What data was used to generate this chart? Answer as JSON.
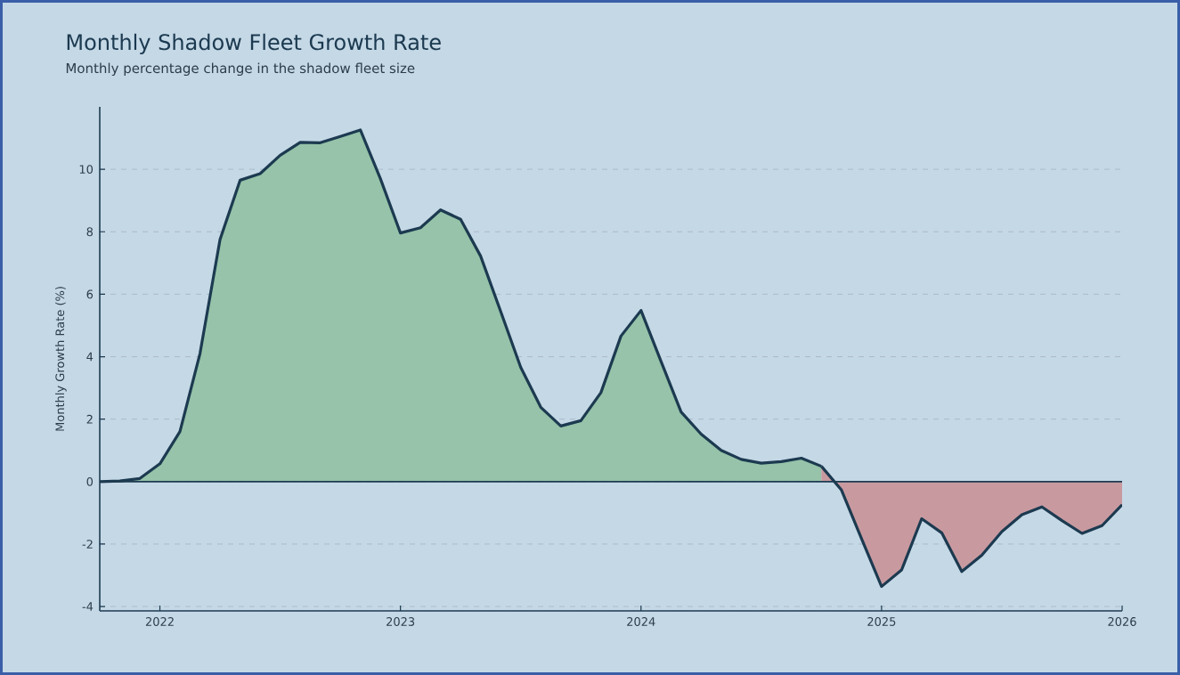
{
  "chart_data": {
    "type": "area",
    "title": "Monthly Shadow Fleet Growth Rate",
    "subtitle": "Monthly percentage change in the shadow fleet size",
    "ylabel": "Monthly Growth Rate (%)",
    "x": [
      "2021-10",
      "2021-11",
      "2021-12",
      "2022-01",
      "2022-02",
      "2022-03",
      "2022-04",
      "2022-05",
      "2022-06",
      "2022-07",
      "2022-08",
      "2022-09",
      "2022-10",
      "2022-11",
      "2022-12",
      "2023-01",
      "2023-02",
      "2023-03",
      "2023-04",
      "2023-05",
      "2023-06",
      "2023-07",
      "2023-08",
      "2023-09",
      "2023-10",
      "2023-11",
      "2023-12",
      "2024-01",
      "2024-02",
      "2024-03",
      "2024-04",
      "2024-05",
      "2024-06",
      "2024-07",
      "2024-08",
      "2024-09",
      "2024-10",
      "2024-11",
      "2024-12",
      "2025-01",
      "2025-02",
      "2025-03",
      "2025-04",
      "2025-05",
      "2025-06",
      "2025-07",
      "2025-08",
      "2025-09",
      "2025-10",
      "2025-11",
      "2025-12",
      "2026-01"
    ],
    "series": [
      {
        "color": "#96c3a9",
        "values": [
          0,
          0.02,
          0.1,
          0.57,
          1.6,
          4.1,
          7.75,
          9.65,
          9.86,
          10.45,
          10.86,
          10.85,
          11.05,
          11.26,
          9.7,
          7.96,
          8.13,
          8.7,
          8.4,
          7.22,
          5.45,
          3.66,
          2.38,
          1.78,
          1.95,
          2.85,
          4.66,
          5.48,
          3.85,
          2.23,
          1.52,
          1.0,
          0.71,
          0.59,
          0.64,
          0.75,
          0.49,
          null,
          null,
          null,
          null,
          null,
          null,
          null,
          null,
          null,
          null,
          null,
          null,
          null,
          null,
          null
        ]
      },
      {
        "color": "#c89aa0",
        "values": [
          null,
          null,
          null,
          null,
          null,
          null,
          null,
          null,
          null,
          null,
          null,
          null,
          null,
          null,
          null,
          null,
          null,
          null,
          null,
          null,
          null,
          null,
          null,
          null,
          null,
          null,
          null,
          null,
          null,
          null,
          null,
          null,
          null,
          null,
          null,
          null,
          0.49,
          -0.27,
          -1.83,
          -3.36,
          -2.83,
          -1.19,
          -1.64,
          -2.88,
          -2.36,
          -1.6,
          -1.06,
          -0.81,
          -1.25,
          -1.66,
          -1.41,
          -0.74
        ]
      }
    ],
    "xlim": [
      "2021-10",
      "2026-01"
    ],
    "xticks": [
      "2022",
      "2023",
      "2024",
      "2025",
      "2026"
    ],
    "ylim": [
      -4.14,
      12
    ],
    "yticks": [
      -4,
      -2,
      0,
      2,
      4,
      6,
      8,
      10
    ],
    "grid": "y",
    "marker": "none",
    "line_style": "solid",
    "ref_lines": [
      {
        "axis": "y",
        "value": 0,
        "color": "#1c3a50"
      }
    ]
  }
}
